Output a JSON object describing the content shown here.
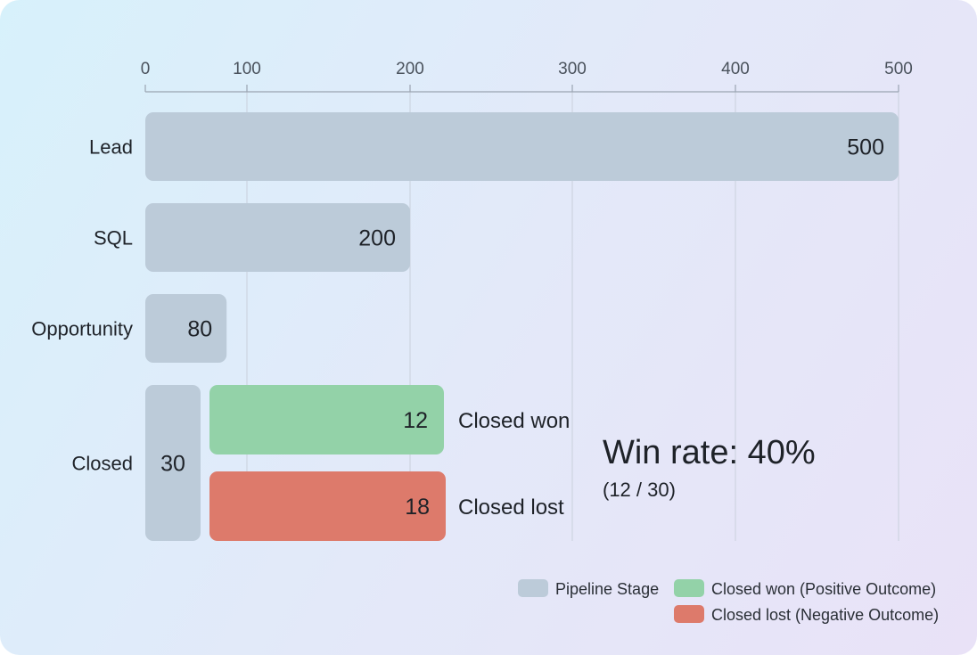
{
  "chart_data": {
    "type": "bar",
    "orientation": "horizontal",
    "categories": [
      "Lead",
      "SQL",
      "Opportunity",
      "Closed"
    ],
    "values": [
      500,
      200,
      80,
      30
    ],
    "breakdown": {
      "category": "Closed",
      "items": [
        {
          "label": "Closed won",
          "value": 12
        },
        {
          "label": "Closed lost",
          "value": 18
        }
      ]
    },
    "xticks": [
      0,
      100,
      200,
      300,
      400,
      500
    ],
    "xlim": [
      0,
      500
    ],
    "grid": true,
    "annotation": {
      "title": "Win rate: 40%",
      "subtitle": "(12 / 30)"
    },
    "legend": {
      "placement": "bottom-right",
      "items": [
        {
          "label": "Pipeline Stage",
          "color": "#bccbd9"
        },
        {
          "label": "Closed won (Positive Outcome)",
          "color": "#93d2a8"
        },
        {
          "label": "Closed lost (Negative Outcome)",
          "color": "#dd7a6b"
        }
      ]
    },
    "colors": {
      "stage": "#bccbd9",
      "won": "#93d2a8",
      "lost": "#dd7a6b",
      "grid": "#c9d0dc",
      "text": "#1e2228"
    }
  }
}
